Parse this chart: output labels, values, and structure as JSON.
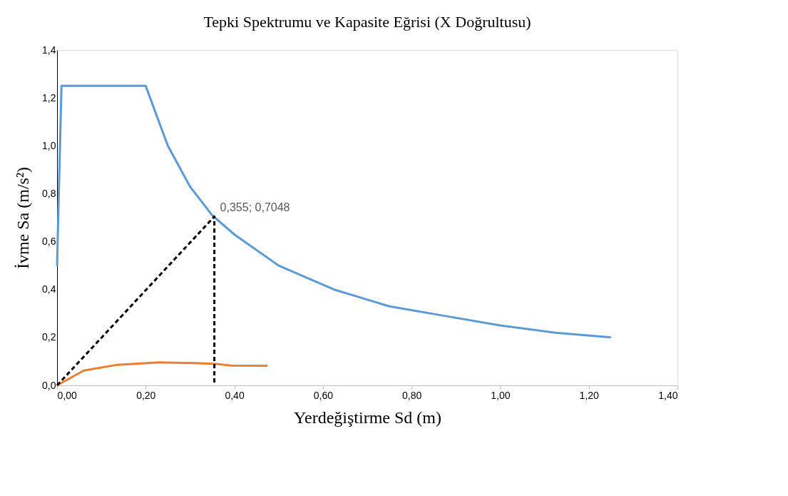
{
  "chart_data": {
    "type": "line",
    "title": "Tepki Spektrumu ve Kapasite Eğrisi (X Doğrultusu)",
    "xlabel": "Yerdeğiştirme   Sd (m)",
    "ylabel": "İvme  Sa  (m/s²)",
    "xlim": [
      0,
      1.4
    ],
    "ylim": [
      0,
      1.4
    ],
    "xticks": [
      {
        "value": 0,
        "label": "0,00"
      },
      {
        "value": 0.2,
        "label": "0,20"
      },
      {
        "value": 0.4,
        "label": "0,40"
      },
      {
        "value": 0.6,
        "label": "0,60"
      },
      {
        "value": 0.8,
        "label": "0,80"
      },
      {
        "value": 1.0,
        "label": "1,00"
      },
      {
        "value": 1.2,
        "label": "1,20"
      },
      {
        "value": 1.4,
        "label": "1,40"
      }
    ],
    "yticks": [
      {
        "value": 0,
        "label": "0,0"
      },
      {
        "value": 0.2,
        "label": "0,2"
      },
      {
        "value": 0.4,
        "label": "0,4"
      },
      {
        "value": 0.6,
        "label": "0,6"
      },
      {
        "value": 0.8,
        "label": "0,8"
      },
      {
        "value": 1.0,
        "label": "1,0"
      },
      {
        "value": 1.2,
        "label": "1,2"
      },
      {
        "value": 1.4,
        "label": "1,4"
      }
    ],
    "grid": false,
    "marker": "none",
    "series": [
      {
        "color": "#5b9bd5",
        "line_style": "solid",
        "x": [
          0,
          0.01,
          0.2,
          0.25,
          0.3,
          0.35,
          0.4,
          0.5,
          0.625,
          0.75,
          0.875,
          1.0,
          1.125,
          1.25
        ],
        "values": [
          0.5,
          1.25,
          1.25,
          1.0,
          0.83,
          0.71,
          0.63,
          0.5,
          0.4,
          0.33,
          0.29,
          0.25,
          0.22,
          0.2
        ]
      },
      {
        "color": "#ed7d31",
        "line_style": "solid",
        "x": [
          0,
          0.06,
          0.136,
          0.231,
          0.309,
          0.362,
          0.393,
          0.475
        ],
        "values": [
          0,
          0.062,
          0.086,
          0.096,
          0.093,
          0.089,
          0.083,
          0.082
        ]
      },
      {
        "color": "#000000",
        "line_style": "dashed",
        "x": [
          0,
          0.355,
          0.355
        ],
        "values": [
          0,
          0.7048,
          0
        ]
      }
    ],
    "annotations": [
      {
        "text": "0,355; 0,7048",
        "x": 0.355,
        "y": 0.7048
      }
    ]
  }
}
